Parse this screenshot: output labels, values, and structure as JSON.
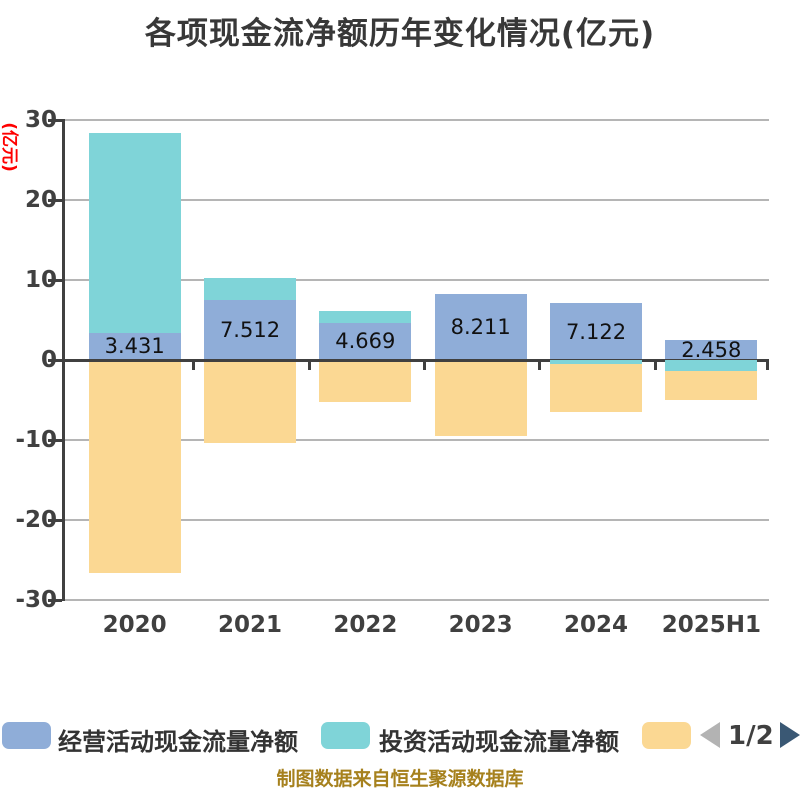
{
  "title": "各项现金流净额历年变化情况(亿元)",
  "y_axis_unit": "(亿元)",
  "footer_note": "制图数据来自恒生聚源数据库",
  "pagination": {
    "label": "1/2",
    "prev_icon": "left-triangle",
    "next_icon": "right-triangle"
  },
  "colors": {
    "title": "#383838",
    "axis": "#404040",
    "grid": "#B5B5B5",
    "tick_label": "#404040",
    "unit_label": "#FF0000",
    "value_label": "#111111",
    "legend_text": "#333333",
    "footer": "#A6811D",
    "pagination_prev": "#B3B3B3",
    "pagination_next": "#3A5874",
    "background": "#FFFFFF"
  },
  "chart_data": {
    "type": "bar",
    "stacked": true,
    "grid": true,
    "legend_position": "bottom",
    "categories": [
      "2020",
      "2021",
      "2022",
      "2023",
      "2024",
      "2025H1"
    ],
    "series": [
      {
        "name": "经营活动现金流量净额",
        "color": "#8FADD8",
        "values": [
          3.431,
          7.512,
          4.669,
          8.211,
          7.122,
          2.458
        ],
        "labels": [
          "3.431",
          "7.512",
          "4.669",
          "8.211",
          "7.122",
          "2.458"
        ]
      },
      {
        "name": "投资活动现金流量净额",
        "color": "#7FD4D8",
        "values": [
          24.9,
          2.7,
          1.4,
          0,
          -0.5,
          -1.4
        ]
      },
      {
        "name": "",
        "color": "#FBD893",
        "values": [
          -26.6,
          -10.4,
          -5.3,
          -9.5,
          -6.0,
          -3.6
        ]
      }
    ],
    "ylabel": "(亿元)",
    "ylim": [
      -30,
      30
    ],
    "yticks": [
      30,
      20,
      10,
      0,
      -10,
      -20,
      -30
    ]
  }
}
